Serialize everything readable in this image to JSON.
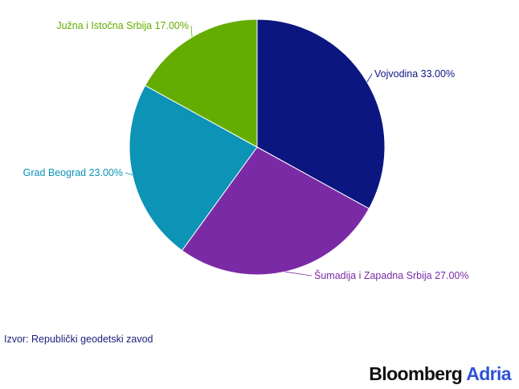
{
  "chart_data": {
    "type": "pie",
    "title": "",
    "slices": [
      {
        "label": "Vojvodina",
        "value": 33.0,
        "value_text": "33.00%",
        "color": "#0c1680"
      },
      {
        "label": "Šumadija i Zapadna Srbija",
        "value": 27.0,
        "value_text": "27.00%",
        "color": "#7b2aa6"
      },
      {
        "label": "Grad Beograd",
        "value": 23.0,
        "value_text": "23.00%",
        "color": "#0c93b6"
      },
      {
        "label": "Južna i Istočna Srbija",
        "value": 17.0,
        "value_text": "17.00%",
        "color": "#64ad00"
      }
    ]
  },
  "source": "Izvor: Republički geodetski zavod",
  "brand": {
    "name": "Bloomberg",
    "accent": "Adria",
    "accent_color": "#2f52d6"
  }
}
